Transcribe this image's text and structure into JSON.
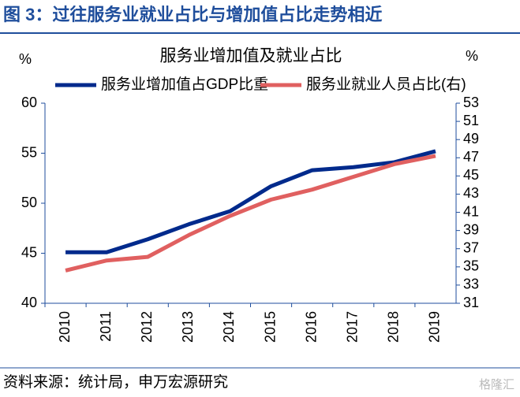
{
  "header": {
    "title": "图 3：过往服务业就业占比与增加值占比走势相近"
  },
  "chart_data": {
    "type": "line",
    "title": "服务业增加值及就业占比",
    "y_label": "%",
    "y2_label": "%",
    "categories": [
      "2010",
      "2011",
      "2012",
      "2013",
      "2014",
      "2015",
      "2016",
      "2017",
      "2018",
      "2019"
    ],
    "series": [
      {
        "name": "服务业增加值占GDP比重",
        "color": "#002a8c",
        "values": [
          45.1,
          45.1,
          46.4,
          47.9,
          49.2,
          51.7,
          53.3,
          53.6,
          54.1,
          55.2
        ]
      },
      {
        "name": "服务业就业人员占比(右)",
        "color": "#e06060",
        "axis": "y2",
        "values": [
          34.6,
          35.7,
          36.1,
          38.5,
          40.6,
          42.4,
          43.5,
          44.9,
          46.3,
          47.2
        ]
      }
    ],
    "ylim": [
      40,
      60
    ],
    "yticks": [
      40,
      45,
      50,
      55,
      60
    ],
    "y2lim": [
      31,
      53
    ],
    "y2ticks": [
      31,
      33,
      35,
      37,
      39,
      41,
      43,
      45,
      47,
      49,
      51,
      53
    ],
    "legend": "top"
  },
  "footer": {
    "source": "资料来源：统计局，申万宏源研究",
    "watermark": "格隆汇"
  }
}
